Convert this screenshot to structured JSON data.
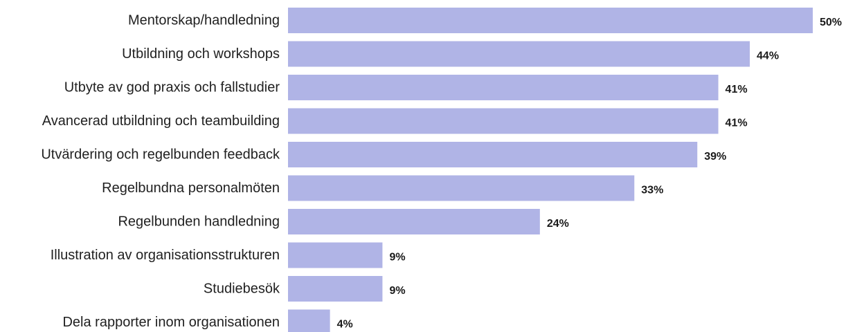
{
  "chart_data": {
    "type": "bar",
    "orientation": "horizontal",
    "categories": [
      "Mentorskap/handledning",
      "Utbildning och workshops",
      "Utbyte av god praxis och fallstudier",
      "Avancerad utbildning och teambuilding",
      "Utvärdering och regelbunden feedback",
      "Regelbundna personalmöten",
      "Regelbunden handledning",
      "Illustration av organisationsstrukturen",
      "Studiebesök",
      "Dela rapporter inom organisationen"
    ],
    "values": [
      50,
      44,
      41,
      41,
      39,
      33,
      24,
      9,
      9,
      4
    ],
    "value_labels": [
      "50%",
      "44%",
      "41%",
      "41%",
      "39%",
      "33%",
      "24%",
      "9%",
      "9%",
      "4%"
    ],
    "xlim": [
      0,
      50
    ],
    "bar_color": "#b0b4e6",
    "grid": false,
    "legend": "none"
  }
}
